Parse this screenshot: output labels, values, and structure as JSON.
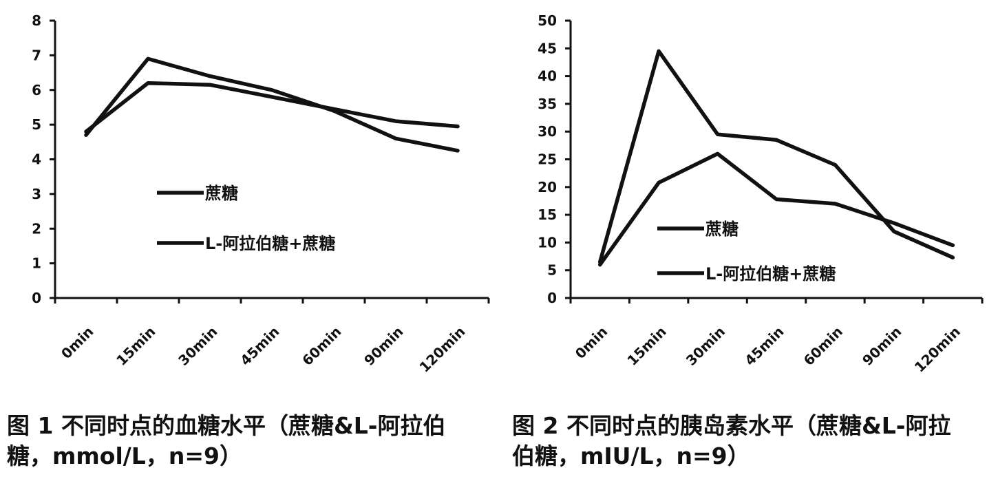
{
  "chart_data": [
    {
      "type": "line",
      "categories": [
        "0min",
        "15min",
        "30min",
        "45min",
        "60min",
        "90min",
        "120min"
      ],
      "ylim": [
        0,
        8
      ],
      "yticks": [
        0,
        1,
        2,
        3,
        4,
        5,
        6,
        7,
        8
      ],
      "series": [
        {
          "name": "蔗糖",
          "values": [
            4.7,
            6.9,
            6.4,
            6.0,
            5.4,
            4.6,
            4.25
          ]
        },
        {
          "name": "L-阿拉伯糖+蔗糖",
          "values": [
            4.8,
            6.2,
            6.15,
            5.8,
            5.45,
            5.1,
            4.95
          ]
        }
      ],
      "legend_position": "center-left",
      "grid": false
    },
    {
      "type": "line",
      "categories": [
        "0min",
        "15min",
        "30min",
        "45min",
        "60min",
        "90min",
        "120min"
      ],
      "ylim": [
        0,
        50
      ],
      "yticks": [
        0,
        5,
        10,
        15,
        20,
        25,
        30,
        35,
        40,
        45,
        50
      ],
      "series": [
        {
          "name": "蔗糖",
          "values": [
            6.5,
            44.5,
            29.5,
            28.5,
            24.0,
            12.0,
            7.3
          ]
        },
        {
          "name": "L-阿拉伯糖+蔗糖",
          "values": [
            6.0,
            20.8,
            26.0,
            17.8,
            17.0,
            13.5,
            9.5
          ]
        }
      ],
      "legend_position": "center",
      "grid": false
    }
  ],
  "captions": {
    "fig1_line1": "图 1 不同时点的血糖水平（蔗糖&L-阿拉伯",
    "fig1_line2": "糖，mmol/L，n=9）",
    "fig2_line1": "图 2 不同时点的胰岛素水平（蔗糖&L-阿拉",
    "fig2_line2": "伯糖，mIU/L，n=9）"
  },
  "colors": {
    "line": "#111111",
    "axis": "#111111"
  }
}
